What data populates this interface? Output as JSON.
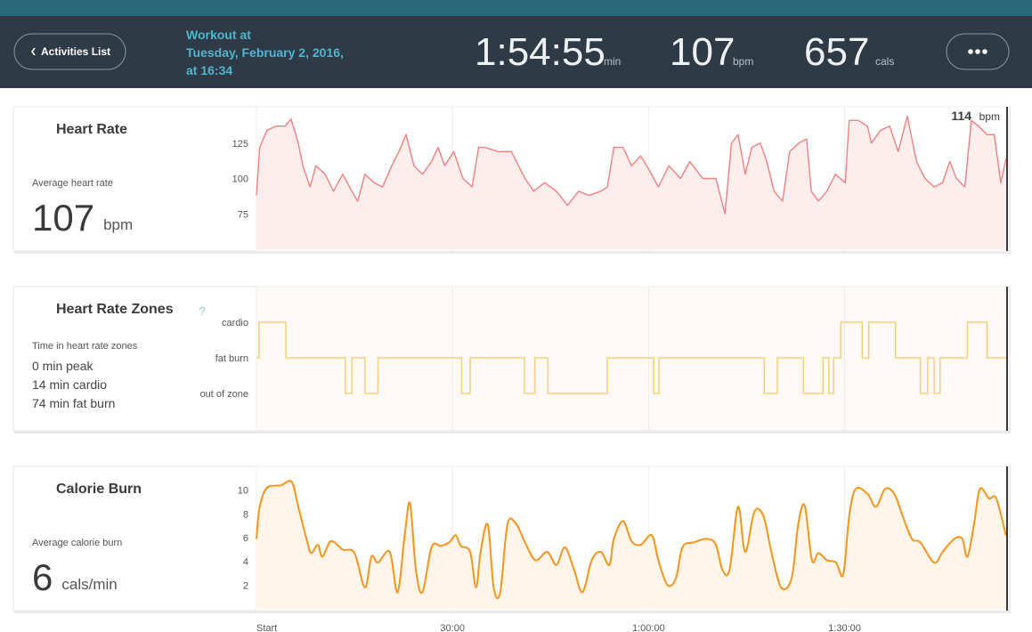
{
  "header": {
    "back_button": "Activities List",
    "workout_lines": [
      "Workout at",
      "Tuesday, February 2, 2016,",
      "at 16:34"
    ],
    "stats": [
      {
        "value": "1:54:55",
        "unit": "min"
      },
      {
        "value": 107,
        "unit": "bpm"
      },
      {
        "value": 657,
        "unit": "cals"
      }
    ]
  },
  "chart_data": [
    {
      "type": "area",
      "title": "Heart Rate",
      "summary_label": "Average heart rate",
      "summary_value": 107,
      "summary_unit": "bpm",
      "current_value": 114,
      "current_unit": "bpm",
      "color": "#f47f7f",
      "fill": "#fdeeee",
      "curve": "linear",
      "xlim": [
        0,
        115
      ],
      "ylim": [
        50,
        150
      ],
      "yticks": [
        75,
        100,
        125
      ],
      "x": [
        0,
        0.5,
        1.6,
        3,
        4.4,
        5.3,
        6.4,
        7.1,
        8.2,
        9.1,
        10.5,
        11.8,
        13.2,
        14.6,
        15.5,
        16.6,
        18,
        19.3,
        20.7,
        21.8,
        22.9,
        24.1,
        25.4,
        26.8,
        27.8,
        28.8,
        30.2,
        31.6,
        33,
        34,
        35,
        37,
        39,
        40.1,
        41.1,
        42.4,
        44.1,
        45.9,
        47.6,
        49.3,
        50.9,
        52.7,
        53.7,
        54.7,
        56.1,
        57.4,
        58.8,
        60.1,
        61.5,
        63.1,
        64.9,
        66.3,
        68.3,
        70.3,
        71.7,
        72.7,
        73.7,
        74.8,
        75.8,
        77.1,
        78.1,
        79.2,
        80.5,
        81.6,
        83,
        84.2,
        84.9,
        86,
        87.3,
        88.6,
        90.1,
        90.7,
        92.1,
        93.5,
        94.1,
        95.5,
        96.9,
        98.2,
        99.6,
        101,
        102.3,
        103.7,
        105,
        106.1,
        107.1,
        108.4,
        109.4,
        110.5,
        111.8,
        112.9,
        113.9,
        114.7
      ],
      "values": [
        88,
        122,
        134,
        137,
        137,
        142,
        125,
        109,
        94,
        109,
        103,
        91,
        103,
        91,
        84,
        103,
        97,
        94,
        109,
        119,
        131,
        109,
        103,
        112,
        122,
        109,
        119,
        100,
        94,
        122,
        122,
        119,
        119,
        109,
        100,
        91,
        97,
        91,
        81,
        91,
        88,
        91,
        94,
        122,
        122,
        109,
        116,
        106,
        94,
        109,
        100,
        112,
        100,
        100,
        75,
        125,
        131,
        103,
        122,
        125,
        112,
        91,
        84,
        119,
        125,
        128,
        91,
        84,
        91,
        103,
        97,
        141,
        141,
        137,
        125,
        134,
        137,
        119,
        144,
        112,
        100,
        94,
        97,
        112,
        100,
        94,
        141,
        137,
        131,
        131,
        97,
        114
      ]
    },
    {
      "type": "step",
      "title": "Heart Rate Zones",
      "help": "?",
      "summary_label": "Time in heart rate zones",
      "summary_lines": [
        "0 min peak",
        "14 min cardio",
        "74 min fat burn"
      ],
      "color": "#f5cf7a",
      "xlim": [
        0,
        115
      ],
      "ylim": [
        -1,
        3
      ],
      "yticks": [
        {
          "value": 0,
          "label": "out of zone"
        },
        {
          "value": 1,
          "label": "fat burn"
        },
        {
          "value": 2,
          "label": "cardio"
        }
      ],
      "x": [
        0,
        0.4,
        4.5,
        13.6,
        14.6,
        16.6,
        18.6,
        31.4,
        32.7,
        41,
        42.6,
        44.6,
        53.7,
        60.8,
        61.6,
        77.7,
        79.7,
        83.7,
        86.7,
        87.6,
        88.3,
        89.4,
        92.7,
        93.7,
        97.8,
        101.6,
        102.7,
        103.7,
        104.6,
        108.8,
        111.8
      ],
      "values": [
        1,
        2,
        1,
        0,
        1,
        0,
        1,
        0,
        1,
        0,
        1,
        0,
        1,
        0,
        1,
        0,
        1,
        0,
        1,
        0,
        1,
        2,
        1,
        2,
        1,
        0,
        1,
        0,
        1,
        2,
        1
      ]
    },
    {
      "type": "area",
      "title": "Calorie Burn",
      "summary_label": "Average calorie burn",
      "summary_value": 6,
      "summary_unit": "cals/min",
      "color": "#f7941d",
      "fill": "#fff5e8",
      "curve": "smooth",
      "xlim": [
        0,
        115
      ],
      "ylim": [
        0,
        12
      ],
      "yticks": [
        2,
        4,
        6,
        8,
        10
      ],
      "xticks": [
        {
          "value": 0,
          "label": "Start"
        },
        {
          "value": 30,
          "label": "30:00"
        },
        {
          "value": 60,
          "label": "1:00:00"
        },
        {
          "value": 90,
          "label": "1:30:00"
        }
      ],
      "x": [
        0,
        0.5,
        1.6,
        3.7,
        5.4,
        6.4,
        7.8,
        8.4,
        9.4,
        10.1,
        11.4,
        13.2,
        15,
        16.6,
        17.6,
        18.6,
        20.4,
        21.6,
        22.7,
        23.5,
        24.4,
        25.4,
        26.8,
        28.2,
        29.5,
        30.5,
        31.3,
        32.7,
        33.6,
        34.3,
        35.4,
        36.3,
        37.3,
        38.4,
        39.7,
        41.1,
        42.7,
        44.5,
        45.9,
        47.2,
        48.6,
        49.9,
        51.3,
        52.7,
        54,
        54.7,
        56.1,
        57.4,
        58.8,
        60.5,
        61.5,
        62.9,
        64.2,
        65.2,
        66.9,
        69,
        70.3,
        71.3,
        72.4,
        73.7,
        74.8,
        76.2,
        77.6,
        78.8,
        80.3,
        81.9,
        82.9,
        83.9,
        85,
        86,
        87.3,
        88.7,
        89.8,
        90.7,
        91.7,
        93.5,
        94.8,
        96.2,
        97.6,
        98.9,
        100.3,
        101.6,
        103.7,
        105,
        106.8,
        108,
        108.8,
        109.8,
        110.7,
        112.1,
        113.2,
        114.7
      ],
      "values": [
        5.9,
        8.6,
        10.2,
        10.4,
        10.7,
        8.6,
        5.6,
        4.7,
        5.4,
        4.4,
        5.7,
        5.0,
        4.7,
        1.8,
        4.4,
        3.9,
        4.8,
        1.4,
        6.3,
        8.9,
        3.3,
        1.4,
        5.2,
        5.3,
        5.6,
        6.2,
        5.3,
        4.8,
        1.8,
        4.8,
        7.1,
        1.8,
        1.4,
        7.1,
        7.2,
        5.6,
        4.1,
        4.8,
        3.7,
        5.2,
        3.3,
        1.4,
        4.1,
        4.8,
        3.7,
        5.9,
        7.4,
        5.7,
        5.4,
        6.2,
        4.1,
        2.0,
        2.6,
        5.2,
        5.6,
        5.9,
        5.4,
        3.3,
        3.3,
        8.6,
        4.8,
        8.2,
        7.8,
        4.8,
        1.8,
        2.6,
        7.1,
        8.7,
        4.1,
        4.7,
        4.1,
        3.9,
        2.9,
        7.8,
        10.1,
        9.7,
        8.6,
        10.1,
        9.7,
        7.8,
        5.9,
        5.6,
        3.9,
        4.8,
        5.9,
        5.9,
        4.4,
        7.1,
        10.1,
        9.3,
        9.3,
        6.2
      ]
    }
  ]
}
